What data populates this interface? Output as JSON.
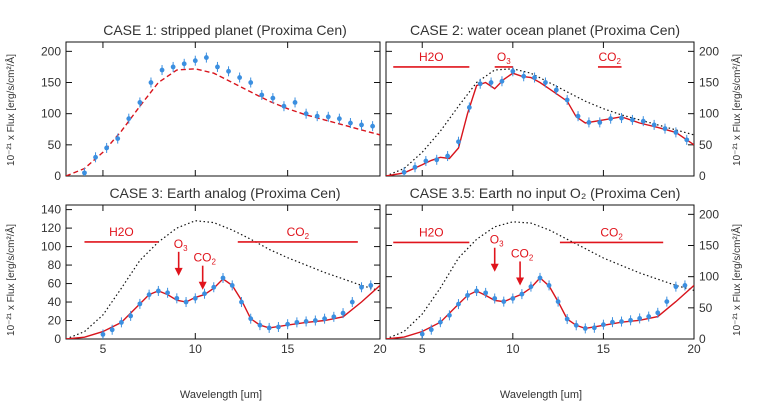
{
  "figure": {
    "x_axis_label": "Wavelength [um]",
    "y_axis_label_left": "10⁻²¹ x Flux [erg/s/cm²/Å]",
    "y_axis_label_right": "10⁻²¹ x Flux [erg/s/cm²/Å]"
  },
  "colors": {
    "data_points": "#3b8fe0",
    "model_line": "#d8141c",
    "fit_line": "#202020",
    "reference_dotted": "#111111",
    "annotation": "#e0141c"
  },
  "chart_data": [
    {
      "type": "scatter",
      "title": "CASE 1: stripped planet (Proxima Cen)",
      "xlabel": "",
      "ylabel": "10⁻²¹ x Flux [erg/s/cm²/Å]",
      "xlim": [
        3,
        20
      ],
      "ylim": [
        0,
        215
      ],
      "y_ticks": [
        0,
        50,
        100,
        150,
        200
      ],
      "x_ticks": [
        5,
        10,
        15,
        20
      ],
      "x_tick_labels_shown": false,
      "grid": false,
      "model_style": "dashed",
      "series": [
        {
          "role": "model",
          "x": [
            3.0,
            4.0,
            5.0,
            6.0,
            7.0,
            8.0,
            9.0,
            10.0,
            11.0,
            12.0,
            13.0,
            14.0,
            15.0,
            16.0,
            17.0,
            18.0,
            19.0,
            20.0
          ],
          "y": [
            0,
            12,
            38,
            72,
            112,
            150,
            170,
            172,
            165,
            150,
            135,
            120,
            108,
            98,
            90,
            82,
            74,
            66
          ]
        },
        {
          "role": "observed",
          "x": [
            4.0,
            4.6,
            5.2,
            5.8,
            6.4,
            7.0,
            7.6,
            8.2,
            8.8,
            9.4,
            10.0,
            10.6,
            11.2,
            11.8,
            12.4,
            13.0,
            13.6,
            14.2,
            14.8,
            15.4,
            16.0,
            16.6,
            17.2,
            17.8,
            18.4,
            19.0,
            19.6
          ],
          "y": [
            5,
            30,
            45,
            60,
            92,
            118,
            150,
            170,
            175,
            180,
            185,
            190,
            175,
            168,
            158,
            150,
            130,
            125,
            112,
            118,
            100,
            96,
            95,
            92,
            85,
            82,
            80
          ]
        }
      ],
      "annotations": []
    },
    {
      "type": "scatter",
      "title": "CASE 2: water ocean planet (Proxima Cen)",
      "xlabel": "",
      "ylabel": "10⁻²¹ x Flux [erg/s/cm²/Å]",
      "xlim": [
        3,
        20
      ],
      "ylim": [
        0,
        215
      ],
      "y_ticks": [
        0,
        50,
        100,
        150,
        200
      ],
      "x_ticks": [
        5,
        10,
        15,
        20
      ],
      "x_tick_labels_shown": false,
      "grid": false,
      "series": [
        {
          "role": "reference",
          "x": [
            3.0,
            4.0,
            5.0,
            6.0,
            7.0,
            8.0,
            9.0,
            10.0,
            11.0,
            12.0,
            13.0,
            14.0,
            15.0,
            16.0,
            17.0,
            18.0,
            19.0,
            20.0
          ],
          "y": [
            0,
            12,
            38,
            72,
            112,
            150,
            170,
            172,
            165,
            150,
            135,
            120,
            108,
            98,
            90,
            82,
            74,
            66
          ]
        },
        {
          "role": "model",
          "x": [
            3.0,
            4.0,
            5.0,
            5.5,
            6.0,
            6.5,
            7.0,
            7.5,
            8.0,
            8.5,
            9.0,
            9.5,
            10.0,
            10.5,
            11.0,
            11.5,
            12.0,
            13.0,
            13.5,
            14.0,
            15.0,
            16.0,
            17.0,
            18.0,
            19.0,
            20.0
          ],
          "y": [
            0,
            5,
            18,
            25,
            30,
            28,
            45,
            100,
            145,
            150,
            140,
            155,
            165,
            160,
            158,
            150,
            140,
            120,
            95,
            85,
            90,
            95,
            85,
            78,
            70,
            50
          ]
        },
        {
          "role": "observed",
          "x": [
            4.0,
            4.6,
            5.2,
            5.8,
            6.4,
            7.0,
            7.6,
            8.2,
            8.8,
            9.4,
            10.0,
            10.6,
            11.2,
            11.8,
            12.4,
            13.0,
            13.6,
            14.2,
            14.8,
            15.4,
            16.0,
            16.6,
            17.2,
            17.8,
            18.4,
            19.0,
            19.6
          ],
          "y": [
            6,
            14,
            24,
            26,
            32,
            55,
            110,
            148,
            150,
            152,
            168,
            160,
            158,
            150,
            138,
            122,
            96,
            86,
            86,
            92,
            93,
            90,
            88,
            82,
            76,
            70,
            58
          ]
        }
      ],
      "annotations": [
        {
          "label": "H2O",
          "x_start": 3.4,
          "x_end": 7.6,
          "y": 175
        },
        {
          "label": "O3",
          "x_start": 9.0,
          "x_end": 10.0,
          "y": 175
        },
        {
          "label": "CO2",
          "x_start": 14.7,
          "x_end": 16.0,
          "y": 175
        }
      ]
    },
    {
      "type": "scatter",
      "title": "CASE 3: Earth analog (Proxima Cen)",
      "xlabel": "Wavelength [um]",
      "ylabel": "10⁻²¹ x Flux [erg/s/cm²/Å]",
      "xlim": [
        3,
        20
      ],
      "ylim": [
        0,
        145
      ],
      "y_ticks": [
        0,
        20,
        40,
        60,
        80,
        100,
        120,
        140
      ],
      "x_ticks": [
        5,
        10,
        15,
        20
      ],
      "x_tick_labels_shown": true,
      "grid": false,
      "series": [
        {
          "role": "reference",
          "x": [
            3.0,
            4.0,
            5.0,
            6.0,
            7.0,
            8.0,
            9.0,
            10.0,
            11.0,
            12.0,
            13.0,
            14.0,
            15.0,
            16.0,
            17.0,
            18.0,
            19.0,
            20.0
          ],
          "y": [
            0,
            8,
            26,
            55,
            85,
            105,
            120,
            128,
            126,
            118,
            108,
            97,
            88,
            80,
            72,
            65,
            58,
            52
          ]
        },
        {
          "role": "model",
          "x": [
            3.0,
            4.0,
            5.0,
            6.0,
            7.0,
            7.5,
            8.0,
            8.5,
            9.0,
            9.5,
            10.0,
            10.5,
            11.0,
            11.5,
            12.0,
            12.5,
            13.0,
            13.5,
            14.0,
            15.0,
            16.0,
            17.0,
            18.0,
            19.0,
            20.0
          ],
          "y": [
            0,
            2,
            8,
            18,
            38,
            48,
            52,
            48,
            42,
            40,
            45,
            48,
            55,
            65,
            58,
            42,
            22,
            15,
            12,
            15,
            18,
            20,
            24,
            40,
            58
          ]
        },
        {
          "role": "observed",
          "x": [
            5.0,
            5.5,
            6.0,
            6.5,
            7.0,
            7.5,
            8.0,
            8.5,
            9.0,
            9.5,
            10.0,
            10.5,
            11.0,
            11.5,
            12.0,
            12.5,
            13.0,
            13.5,
            14.0,
            14.5,
            15.0,
            15.5,
            16.0,
            16.5,
            17.0,
            17.5,
            18.0,
            18.5,
            19.0,
            19.5
          ],
          "y": [
            5,
            10,
            18,
            25,
            38,
            48,
            52,
            50,
            44,
            40,
            44,
            49,
            56,
            66,
            58,
            40,
            22,
            15,
            12,
            13,
            16,
            18,
            19,
            20,
            22,
            24,
            28,
            40,
            56,
            58
          ]
        }
      ],
      "annotations": [
        {
          "label": "H2O",
          "x_start": 4.0,
          "x_end": 8.0,
          "y": 105
        },
        {
          "label": "CO2",
          "x_start": 12.3,
          "x_end": 18.8,
          "y": 105
        },
        {
          "label": "O3",
          "x": 9.1,
          "y": 90,
          "arrow": true
        },
        {
          "label": "CO2",
          "x": 10.4,
          "y": 75,
          "arrow": true
        }
      ]
    },
    {
      "type": "scatter",
      "title": "CASE 3.5: Earth no input O₂ (Proxima Cen)",
      "xlabel": "Wavelength [um]",
      "ylabel": "10⁻²¹ x Flux [erg/s/cm²/Å]",
      "xlim": [
        3,
        20
      ],
      "ylim": [
        0,
        215
      ],
      "y_ticks": [
        0,
        50,
        100,
        150,
        200
      ],
      "x_ticks": [
        5,
        10,
        15,
        20
      ],
      "x_tick_labels_shown": true,
      "grid": false,
      "series": [
        {
          "role": "reference",
          "x": [
            3.0,
            4.0,
            5.0,
            6.0,
            7.0,
            8.0,
            9.0,
            10.0,
            11.0,
            12.0,
            13.0,
            14.0,
            15.0,
            16.0,
            17.0,
            18.0,
            19.0,
            20.0
          ],
          "y": [
            0,
            12,
            40,
            82,
            130,
            160,
            180,
            188,
            186,
            175,
            160,
            145,
            130,
            118,
            106,
            96,
            86,
            78
          ]
        },
        {
          "role": "model",
          "x": [
            3.0,
            4.0,
            5.0,
            6.0,
            7.0,
            7.5,
            8.0,
            8.5,
            9.0,
            9.5,
            10.0,
            10.5,
            11.0,
            11.5,
            12.0,
            12.5,
            13.0,
            13.5,
            14.0,
            15.0,
            16.0,
            17.0,
            18.0,
            19.0,
            20.0
          ],
          "y": [
            0,
            3,
            12,
            27,
            56,
            70,
            77,
            70,
            62,
            60,
            66,
            72,
            82,
            98,
            85,
            60,
            32,
            22,
            17,
            22,
            27,
            30,
            36,
            60,
            86
          ]
        },
        {
          "role": "observed",
          "x": [
            5.0,
            5.5,
            6.0,
            6.5,
            7.0,
            7.5,
            8.0,
            8.5,
            9.0,
            9.5,
            10.0,
            10.5,
            11.0,
            11.5,
            12.0,
            12.5,
            13.0,
            13.5,
            14.0,
            14.5,
            15.0,
            15.5,
            16.0,
            16.5,
            17.0,
            17.5,
            18.0,
            18.5,
            19.0,
            19.5
          ],
          "y": [
            8,
            15,
            27,
            38,
            56,
            70,
            77,
            74,
            65,
            60,
            65,
            72,
            84,
            98,
            86,
            60,
            32,
            22,
            17,
            18,
            23,
            27,
            28,
            30,
            33,
            36,
            42,
            60,
            84,
            86
          ]
        }
      ],
      "annotations": [
        {
          "label": "H2O",
          "x_start": 3.4,
          "x_end": 7.6,
          "y": 155
        },
        {
          "label": "CO2",
          "x_start": 12.6,
          "x_end": 18.3,
          "y": 155
        },
        {
          "label": "O3",
          "x": 9.0,
          "y": 140,
          "arrow": true
        },
        {
          "label": "CO2",
          "x": 10.4,
          "y": 118,
          "arrow": true
        }
      ]
    }
  ]
}
